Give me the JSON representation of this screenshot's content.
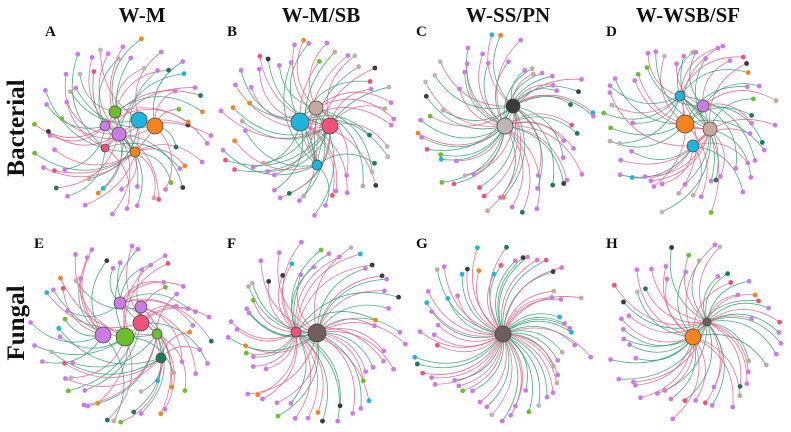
{
  "column_titles": [
    "W-M",
    "W-M/SB",
    "W-SS/PN",
    "W-WSB/SF"
  ],
  "row_labels": [
    "Bacterial",
    "Fungal"
  ],
  "panel_letters": [
    "A",
    "B",
    "C",
    "D",
    "E",
    "F",
    "G",
    "H"
  ],
  "colors": {
    "edge_positive": "#e05a84",
    "edge_negative": "#2f9a6e",
    "node_palette": [
      "#cc7be6",
      "#6cbf2a",
      "#1fb4dc",
      "#f5831f",
      "#f0527a",
      "#bdb6b6",
      "#3b3b3b",
      "#c8a79d",
      "#1f7a5a"
    ]
  },
  "panels": [
    {
      "letter": "A",
      "hubs": [
        {
          "color": "#1fb4dc",
          "size": 8
        },
        {
          "color": "#f5831f",
          "size": 8
        },
        {
          "color": "#cc7be6",
          "size": 7
        },
        {
          "color": "#6cbf2a",
          "size": 6
        },
        {
          "color": "#cc7be6",
          "size": 5
        },
        {
          "color": "#f5831f",
          "size": 5
        },
        {
          "color": "#f0527a",
          "size": 4
        }
      ]
    },
    {
      "letter": "B",
      "hubs": [
        {
          "color": "#1fb4dc",
          "size": 9
        },
        {
          "color": "#f0527a",
          "size": 8
        },
        {
          "color": "#c8a79d",
          "size": 7
        },
        {
          "color": "#1fb4dc",
          "size": 5
        }
      ]
    },
    {
      "letter": "C",
      "hubs": [
        {
          "color": "#bdb6b6",
          "size": 8
        },
        {
          "color": "#3b3b3b",
          "size": 7
        }
      ]
    },
    {
      "letter": "D",
      "hubs": [
        {
          "color": "#f5831f",
          "size": 9
        },
        {
          "color": "#c8a79d",
          "size": 7
        },
        {
          "color": "#cc7be6",
          "size": 6
        },
        {
          "color": "#1fb4dc",
          "size": 6
        },
        {
          "color": "#1fb4dc",
          "size": 5
        }
      ]
    },
    {
      "letter": "E",
      "hubs": [
        {
          "color": "#6cbf2a",
          "size": 9
        },
        {
          "color": "#f0527a",
          "size": 8
        },
        {
          "color": "#cc7be6",
          "size": 8
        },
        {
          "color": "#cc7be6",
          "size": 6
        },
        {
          "color": "#cc7be6",
          "size": 6
        },
        {
          "color": "#6cbf2a",
          "size": 5
        },
        {
          "color": "#1f7a5a",
          "size": 5
        }
      ]
    },
    {
      "letter": "F",
      "hubs": [
        {
          "color": "#6e5f5b",
          "size": 9
        },
        {
          "color": "#f0527a",
          "size": 5
        }
      ]
    },
    {
      "letter": "G",
      "hubs": [
        {
          "color": "#6e5f5b",
          "size": 8
        }
      ]
    },
    {
      "letter": "H",
      "hubs": [
        {
          "color": "#f5831f",
          "size": 8
        },
        {
          "color": "#6e5f5b",
          "size": 4
        }
      ]
    }
  ]
}
